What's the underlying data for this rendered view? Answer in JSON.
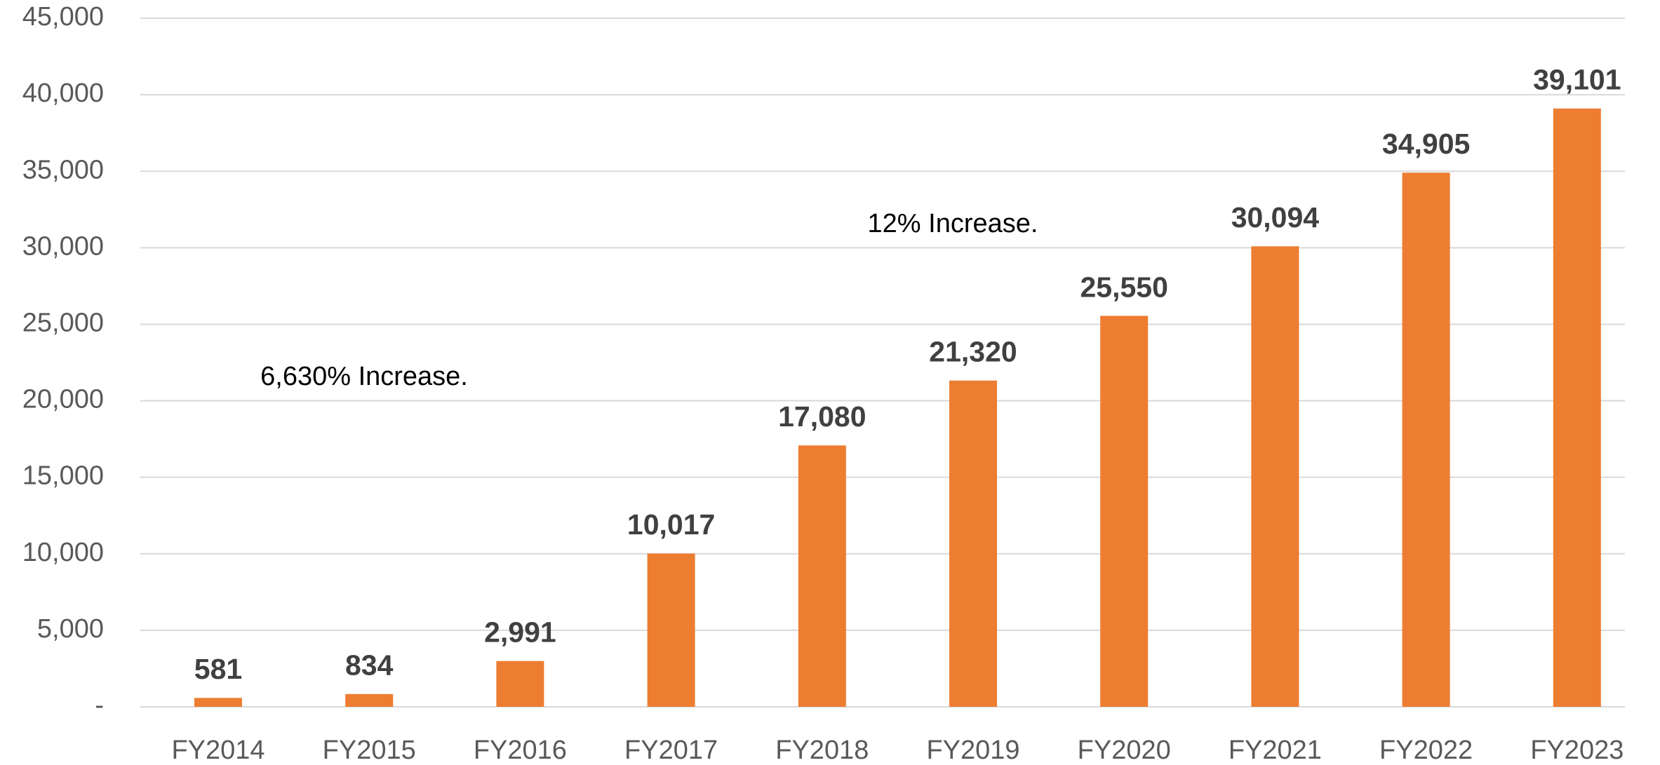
{
  "chart_data": {
    "type": "bar",
    "categories": [
      "FY2014",
      "FY2015",
      "FY2016",
      "FY2017",
      "FY2018",
      "FY2019",
      "FY2020",
      "FY2021",
      "FY2022",
      "FY2023"
    ],
    "values": [
      581,
      834,
      2991,
      10017,
      17080,
      21320,
      25550,
      30094,
      34905,
      39101
    ],
    "value_labels": [
      "581",
      "834",
      "2,991",
      "10,017",
      "17,080",
      "21,320",
      "25,550",
      "30,094",
      "34,905",
      "39,101"
    ],
    "color": "#ed7d31",
    "ylim": [
      0,
      45000
    ],
    "yticks": [
      {
        "value": 0,
        "label": "-"
      },
      {
        "value": 5000,
        "label": "5,000"
      },
      {
        "value": 10000,
        "label": "10,000"
      },
      {
        "value": 15000,
        "label": "15,000"
      },
      {
        "value": 20000,
        "label": "20,000"
      },
      {
        "value": 25000,
        "label": "25,000"
      },
      {
        "value": 30000,
        "label": "30,000"
      },
      {
        "value": 35000,
        "label": "35,000"
      },
      {
        "value": 40000,
        "label": "40,000"
      },
      {
        "value": 45000,
        "label": "45,000"
      }
    ],
    "grid": true,
    "annotations": [
      "6,630% Increase.",
      "12% Increase."
    ]
  }
}
